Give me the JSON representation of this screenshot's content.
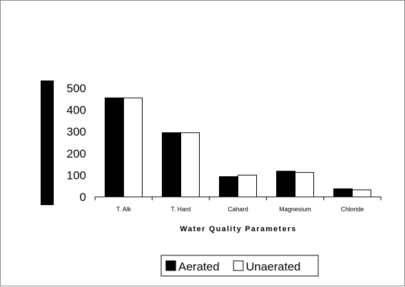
{
  "chart_data": {
    "type": "bar",
    "xlabel": "Water Quality Parameters",
    "ylabel": "",
    "categories": [
      "T. Alk",
      "T. Hard",
      "Cahard",
      "Magnesium",
      "Chloride"
    ],
    "series": [
      {
        "name": "Aerated",
        "values": [
          455,
          295,
          93,
          118,
          37
        ],
        "color": "#000000"
      },
      {
        "name": "Unaerated",
        "values": [
          455,
          295,
          100,
          112,
          32
        ],
        "color": "#ffffff"
      }
    ],
    "ylim": [
      0,
      500
    ],
    "yticks": [
      "0",
      "100",
      "200",
      "300",
      "400",
      "500"
    ],
    "grid": false,
    "legend_position": "bottom-center"
  }
}
